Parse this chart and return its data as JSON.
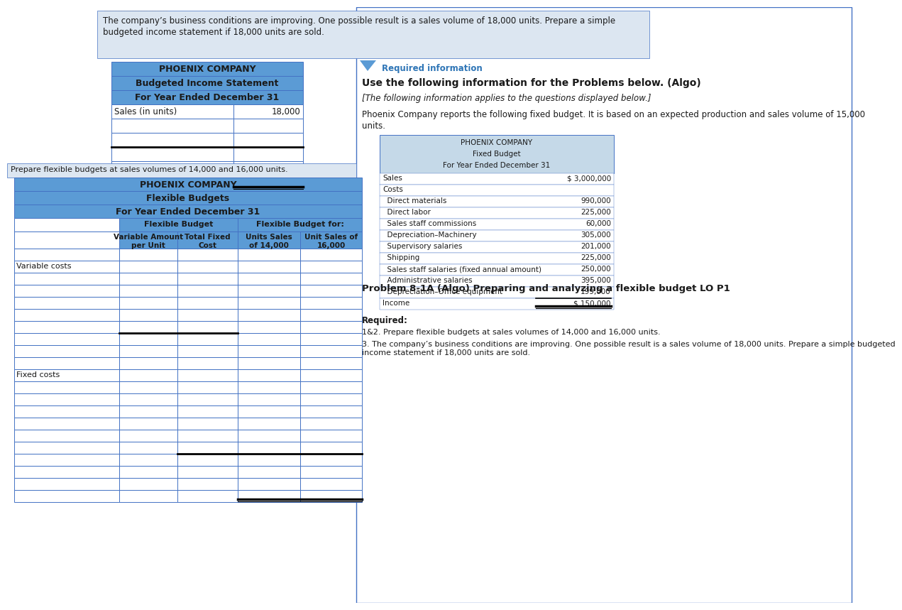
{
  "white": "#ffffff",
  "blue_header": "#5b9bd5",
  "light_blue": "#dce6f1",
  "fixed_budget_bg": "#c5d9e8",
  "dark_text": "#1a1a1a",
  "link_blue": "#2e75b6",
  "border_color": "#4472c4",
  "top_banner_text": "The company’s business conditions are improving. One possible result is a sales volume of 18,000 units. Prepare a simple\nbudgeted income statement if 18,000 units are sold.",
  "q2_banner_text": "Prepare flexible budgets at sales volumes of 14,000 and 16,000 units.",
  "table1_title1": "PHOENIX COMPANY",
  "table1_title2": "Budgeted Income Statement",
  "table1_title3": "For Year Ended December 31",
  "table1_row1_label": "Sales (in units)",
  "table1_row1_val": "18,000",
  "table2_title1": "PHOENIX COMPANY",
  "table2_title2": "Flexible Budgets",
  "table2_title3": "For Year Ended December 31",
  "table2_subhdr1_col1": "Flexible Budget",
  "table2_subhdr1_col2": "Flexible Budget for:",
  "table2_subhdr2_col1": "Variable Amount\nper Unit",
  "table2_subhdr2_col2": "Total Fixed\nCost",
  "table2_subhdr2_col3": "Units Sales\nof 14,000",
  "table2_subhdr2_col4": "Unit Sales of\n16,000",
  "table2_vc_label": "Variable costs",
  "table2_fc_label": "Fixed costs",
  "required_info_label": "Required information",
  "use_following_text": "Use the following information for the Problems below. (Algo)",
  "italic_text": "[The following information applies to the questions displayed below.]",
  "phoenix_body_text": "Phoenix Company reports the following fixed budget. It is based on an expected production and sales volume of 15,000\nunits.",
  "fixed_budget_title1": "PHOENIX COMPANY",
  "fixed_budget_title2": "Fixed Budget",
  "fixed_budget_title3": "For Year Ended December 31",
  "fixed_budget_rows": [
    [
      "Sales",
      "$ 3,000,000"
    ],
    [
      "Costs",
      ""
    ],
    [
      "  Direct materials",
      "990,000"
    ],
    [
      "  Direct labor",
      "225,000"
    ],
    [
      "  Sales staff commissions",
      "60,000"
    ],
    [
      "  Depreciation–Machinery",
      "305,000"
    ],
    [
      "  Supervisory salaries",
      "201,000"
    ],
    [
      "  Shipping",
      "225,000"
    ],
    [
      "  Sales staff salaries (fixed annual amount)",
      "250,000"
    ],
    [
      "  Administrative salaries",
      "395,000"
    ],
    [
      "  Depreciation–Office equipment",
      "199,000"
    ],
    [
      "Income",
      "$ 150,000"
    ]
  ],
  "problem_title": "Problem 8-1A (Algo) Preparing and analyzing a flexible budget LO P1",
  "required_label": "Required:",
  "required_item1": "1&2. Prepare flexible budgets at sales volumes of 14,000 and 16,000 units.",
  "required_item2": "3. The company’s business conditions are improving. One possible result is a sales volume of 18,000 units. Prepare a simple budgeted\nincome statement if 18,000 units are sold."
}
